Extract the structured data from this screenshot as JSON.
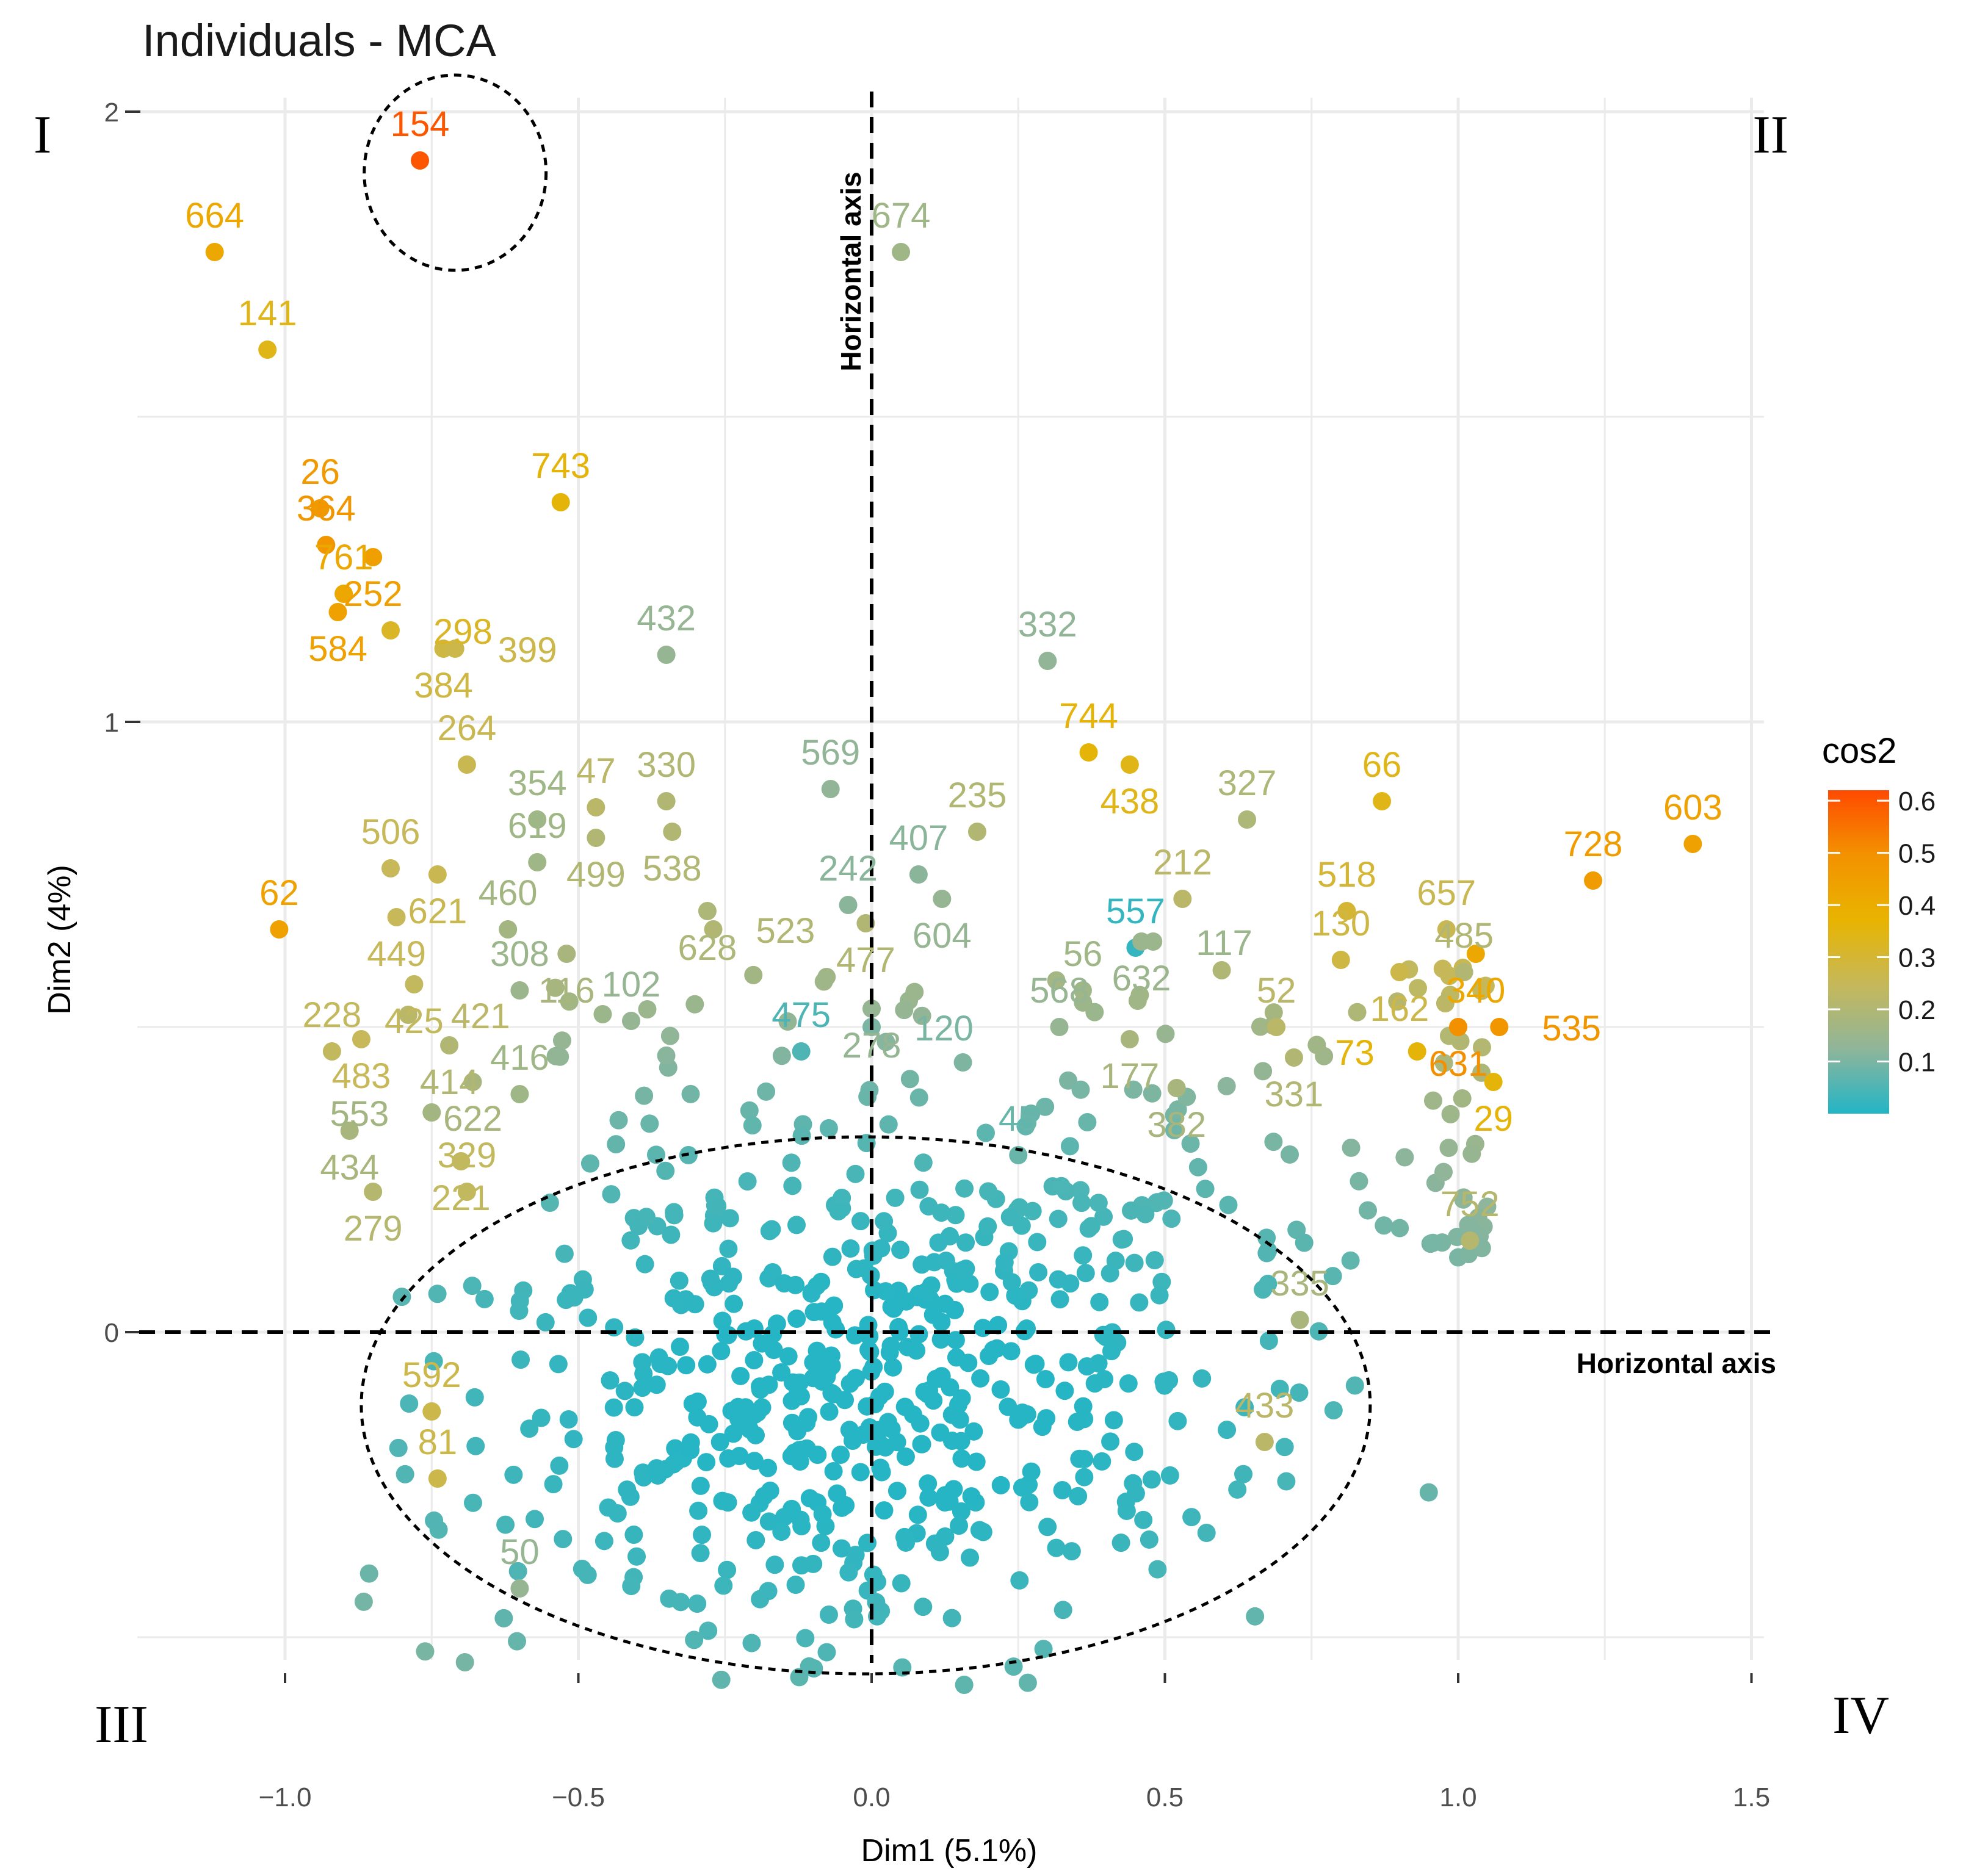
{
  "chart_data": {
    "type": "scatter",
    "title": "Individuals - MCA",
    "xlabel": "Dim1 (5.1%)",
    "ylabel": "Dim2 (4%)",
    "xlim": [
      -1.25,
      1.55
    ],
    "ylim": [
      -0.62,
      2.1
    ],
    "x_ticks": [
      -1.0,
      -0.5,
      0.0,
      0.5,
      1.0,
      1.5
    ],
    "x_tick_labels": [
      "−1.0",
      "−0.5",
      "0.0",
      "0.5",
      "1.0",
      "1.5"
    ],
    "y_ticks": [
      0,
      1,
      2
    ],
    "y_tick_labels": [
      "0",
      "1",
      "2"
    ],
    "grid": true,
    "color_variable": "cos2",
    "colorbar": {
      "title": "cos2",
      "ticks": [
        0.1,
        0.2,
        0.3,
        0.4,
        0.5,
        0.6
      ],
      "tick_labels": [
        "0.1",
        "0.2",
        "0.3",
        "0.4",
        "0.5",
        "0.6"
      ],
      "range": [
        0.0,
        0.62
      ],
      "stops": [
        "#22b5c6",
        "#8fb59a",
        "#c6b85a",
        "#e8b400",
        "#f39200",
        "#ff4a00"
      ]
    },
    "annotations": {
      "vertical_axis_label": "Horizontal axis",
      "horizontal_axis_label": "Horizontal axis",
      "quadrants": [
        "I",
        "II",
        "III",
        "IV"
      ],
      "highlight_circle": {
        "cx": -0.71,
        "cy": 1.9,
        "rx": 0.155,
        "ry": 0.16
      },
      "cluster_ellipse": {
        "cx": -0.01,
        "cy": -0.12,
        "rx": 0.86,
        "ry": 0.44
      }
    },
    "labeled_points": [
      {
        "id": "154",
        "x": -0.77,
        "y": 1.92,
        "cos2": 0.6
      },
      {
        "id": "664",
        "x": -1.12,
        "y": 1.77,
        "cos2": 0.42
      },
      {
        "id": "141",
        "x": -1.03,
        "y": 1.61,
        "cos2": 0.34
      },
      {
        "id": "674",
        "x": 0.05,
        "y": 1.77,
        "cos2": 0.16
      },
      {
        "id": "26",
        "x": -0.94,
        "y": 1.35,
        "cos2": 0.47
      },
      {
        "id": "743",
        "x": -0.53,
        "y": 1.36,
        "cos2": 0.36
      },
      {
        "id": "364",
        "x": -0.93,
        "y": 1.29,
        "cos2": 0.48
      },
      {
        "id": "252",
        "x": -0.85,
        "y": 1.27,
        "cos2": 0.45
      },
      {
        "id": "761",
        "x": -0.9,
        "y": 1.21,
        "cos2": 0.42
      },
      {
        "id": "584",
        "x": -0.91,
        "y": 1.18,
        "cos2": 0.44
      },
      {
        "id": "298",
        "x": -0.82,
        "y": 1.15,
        "cos2": 0.32
      },
      {
        "id": "384",
        "x": -0.73,
        "y": 1.12,
        "cos2": 0.28
      },
      {
        "id": "399",
        "x": -0.71,
        "y": 1.12,
        "cos2": 0.27
      },
      {
        "id": "432",
        "x": -0.35,
        "y": 1.11,
        "cos2": 0.14
      },
      {
        "id": "332",
        "x": 0.3,
        "y": 1.1,
        "cos2": 0.13
      },
      {
        "id": "744",
        "x": 0.37,
        "y": 0.95,
        "cos2": 0.36
      },
      {
        "id": "438",
        "x": 0.44,
        "y": 0.93,
        "cos2": 0.34
      },
      {
        "id": "264",
        "x": -0.69,
        "y": 0.93,
        "cos2": 0.26
      },
      {
        "id": "569",
        "x": -0.07,
        "y": 0.89,
        "cos2": 0.13
      },
      {
        "id": "330",
        "x": -0.35,
        "y": 0.87,
        "cos2": 0.2
      },
      {
        "id": "47",
        "x": -0.47,
        "y": 0.86,
        "cos2": 0.22
      },
      {
        "id": "538",
        "x": -0.34,
        "y": 0.82,
        "cos2": 0.2
      },
      {
        "id": "354",
        "x": -0.57,
        "y": 0.84,
        "cos2": 0.16
      },
      {
        "id": "603",
        "x": 1.4,
        "y": 0.8,
        "cos2": 0.44
      },
      {
        "id": "66",
        "x": 0.87,
        "y": 0.87,
        "cos2": 0.34
      },
      {
        "id": "327",
        "x": 0.64,
        "y": 0.84,
        "cos2": 0.19
      },
      {
        "id": "235",
        "x": 0.18,
        "y": 0.82,
        "cos2": 0.2
      },
      {
        "id": "499",
        "x": -0.47,
        "y": 0.81,
        "cos2": 0.2
      },
      {
        "id": "728",
        "x": 1.23,
        "y": 0.74,
        "cos2": 0.46
      },
      {
        "id": "506",
        "x": -0.82,
        "y": 0.76,
        "cos2": 0.25
      },
      {
        "id": "621",
        "x": -0.74,
        "y": 0.75,
        "cos2": 0.26
      },
      {
        "id": "619",
        "x": -0.57,
        "y": 0.77,
        "cos2": 0.16
      },
      {
        "id": "407",
        "x": 0.08,
        "y": 0.75,
        "cos2": 0.12
      },
      {
        "id": "628",
        "x": -0.28,
        "y": 0.69,
        "cos2": 0.19
      },
      {
        "id": "523",
        "x": -0.27,
        "y": 0.66,
        "cos2": 0.2
      },
      {
        "id": "242",
        "x": -0.04,
        "y": 0.7,
        "cos2": 0.12
      },
      {
        "id": "604",
        "x": 0.12,
        "y": 0.71,
        "cos2": 0.14
      },
      {
        "id": "212",
        "x": 0.53,
        "y": 0.71,
        "cos2": 0.22
      },
      {
        "id": "518",
        "x": 0.81,
        "y": 0.69,
        "cos2": 0.3
      },
      {
        "id": "449",
        "x": -0.81,
        "y": 0.68,
        "cos2": 0.25
      },
      {
        "id": "62",
        "x": -1.01,
        "y": 0.66,
        "cos2": 0.44
      },
      {
        "id": "460",
        "x": -0.62,
        "y": 0.66,
        "cos2": 0.17
      },
      {
        "id": "477",
        "x": -0.01,
        "y": 0.67,
        "cos2": 0.2
      },
      {
        "id": "557",
        "x": 0.45,
        "y": 0.63,
        "cos2": 0.02
      },
      {
        "id": "632",
        "x": 0.46,
        "y": 0.64,
        "cos2": 0.15
      },
      {
        "id": "117",
        "x": 0.48,
        "y": 0.64,
        "cos2": 0.15
      },
      {
        "id": "657",
        "x": 0.98,
        "y": 0.66,
        "cos2": 0.26
      },
      {
        "id": "340",
        "x": 1.03,
        "y": 0.62,
        "cos2": 0.42
      },
      {
        "id": "116",
        "x": -0.52,
        "y": 0.62,
        "cos2": 0.18
      },
      {
        "id": "308",
        "x": -0.6,
        "y": 0.56,
        "cos2": 0.15
      },
      {
        "id": "102",
        "x": -0.41,
        "y": 0.51,
        "cos2": 0.14
      },
      {
        "id": "130",
        "x": 0.8,
        "y": 0.61,
        "cos2": 0.28
      },
      {
        "id": "162",
        "x": 0.9,
        "y": 0.59,
        "cos2": 0.27
      },
      {
        "id": "485",
        "x": 1.01,
        "y": 0.59,
        "cos2": 0.2
      },
      {
        "id": "425",
        "x": -0.78,
        "y": 0.57,
        "cos2": 0.24
      },
      {
        "id": "278",
        "x": 0.0,
        "y": 0.53,
        "cos2": 0.14
      },
      {
        "id": "56",
        "x": 0.36,
        "y": 0.56,
        "cos2": 0.16
      },
      {
        "id": "483",
        "x": -0.87,
        "y": 0.48,
        "cos2": 0.25
      },
      {
        "id": "421",
        "x": -0.79,
        "y": 0.52,
        "cos2": 0.22
      },
      {
        "id": "414",
        "x": -0.72,
        "y": 0.47,
        "cos2": 0.2
      },
      {
        "id": "475",
        "x": -0.12,
        "y": 0.46,
        "cos2": 0.05
      },
      {
        "id": "120",
        "x": 0.0,
        "y": 0.5,
        "cos2": 0.1
      },
      {
        "id": "52",
        "x": 0.69,
        "y": 0.5,
        "cos2": 0.22
      },
      {
        "id": "631",
        "x": 1.0,
        "y": 0.5,
        "cos2": 0.5
      },
      {
        "id": "535",
        "x": 1.07,
        "y": 0.5,
        "cos2": 0.48
      },
      {
        "id": "568",
        "x": 0.32,
        "y": 0.5,
        "cos2": 0.14
      },
      {
        "id": "177",
        "x": 0.44,
        "y": 0.48,
        "cos2": 0.18
      },
      {
        "id": "228",
        "x": -0.92,
        "y": 0.46,
        "cos2": 0.24
      },
      {
        "id": "622",
        "x": -0.68,
        "y": 0.41,
        "cos2": 0.18
      },
      {
        "id": "331",
        "x": 0.72,
        "y": 0.45,
        "cos2": 0.2
      },
      {
        "id": "73",
        "x": 0.93,
        "y": 0.46,
        "cos2": 0.36
      },
      {
        "id": "553",
        "x": -0.75,
        "y": 0.36,
        "cos2": 0.17
      },
      {
        "id": "416",
        "x": -0.6,
        "y": 0.39,
        "cos2": 0.16
      },
      {
        "id": "382",
        "x": 0.52,
        "y": 0.4,
        "cos2": 0.18
      },
      {
        "id": "29",
        "x": 1.06,
        "y": 0.41,
        "cos2": 0.36
      },
      {
        "id": "434",
        "x": -0.89,
        "y": 0.33,
        "cos2": 0.18
      },
      {
        "id": "45",
        "x": 0.25,
        "y": 0.29,
        "cos2": 0.08
      },
      {
        "id": "221",
        "x": -0.7,
        "y": 0.28,
        "cos2": 0.24
      },
      {
        "id": "279",
        "x": -0.85,
        "y": 0.23,
        "cos2": 0.21
      },
      {
        "id": "329",
        "x": -0.69,
        "y": 0.23,
        "cos2": 0.24
      },
      {
        "id": "752",
        "x": 1.02,
        "y": 0.15,
        "cos2": 0.21
      },
      {
        "id": "335",
        "x": 0.73,
        "y": 0.02,
        "cos2": 0.18
      },
      {
        "id": "433",
        "x": 0.67,
        "y": -0.18,
        "cos2": 0.22
      },
      {
        "id": "592",
        "x": -0.75,
        "y": -0.13,
        "cos2": 0.27
      },
      {
        "id": "81",
        "x": -0.74,
        "y": -0.24,
        "cos2": 0.27
      },
      {
        "id": "50",
        "x": -0.6,
        "y": -0.42,
        "cos2": 0.14
      }
    ],
    "unlabeled_point_count": 680
  }
}
